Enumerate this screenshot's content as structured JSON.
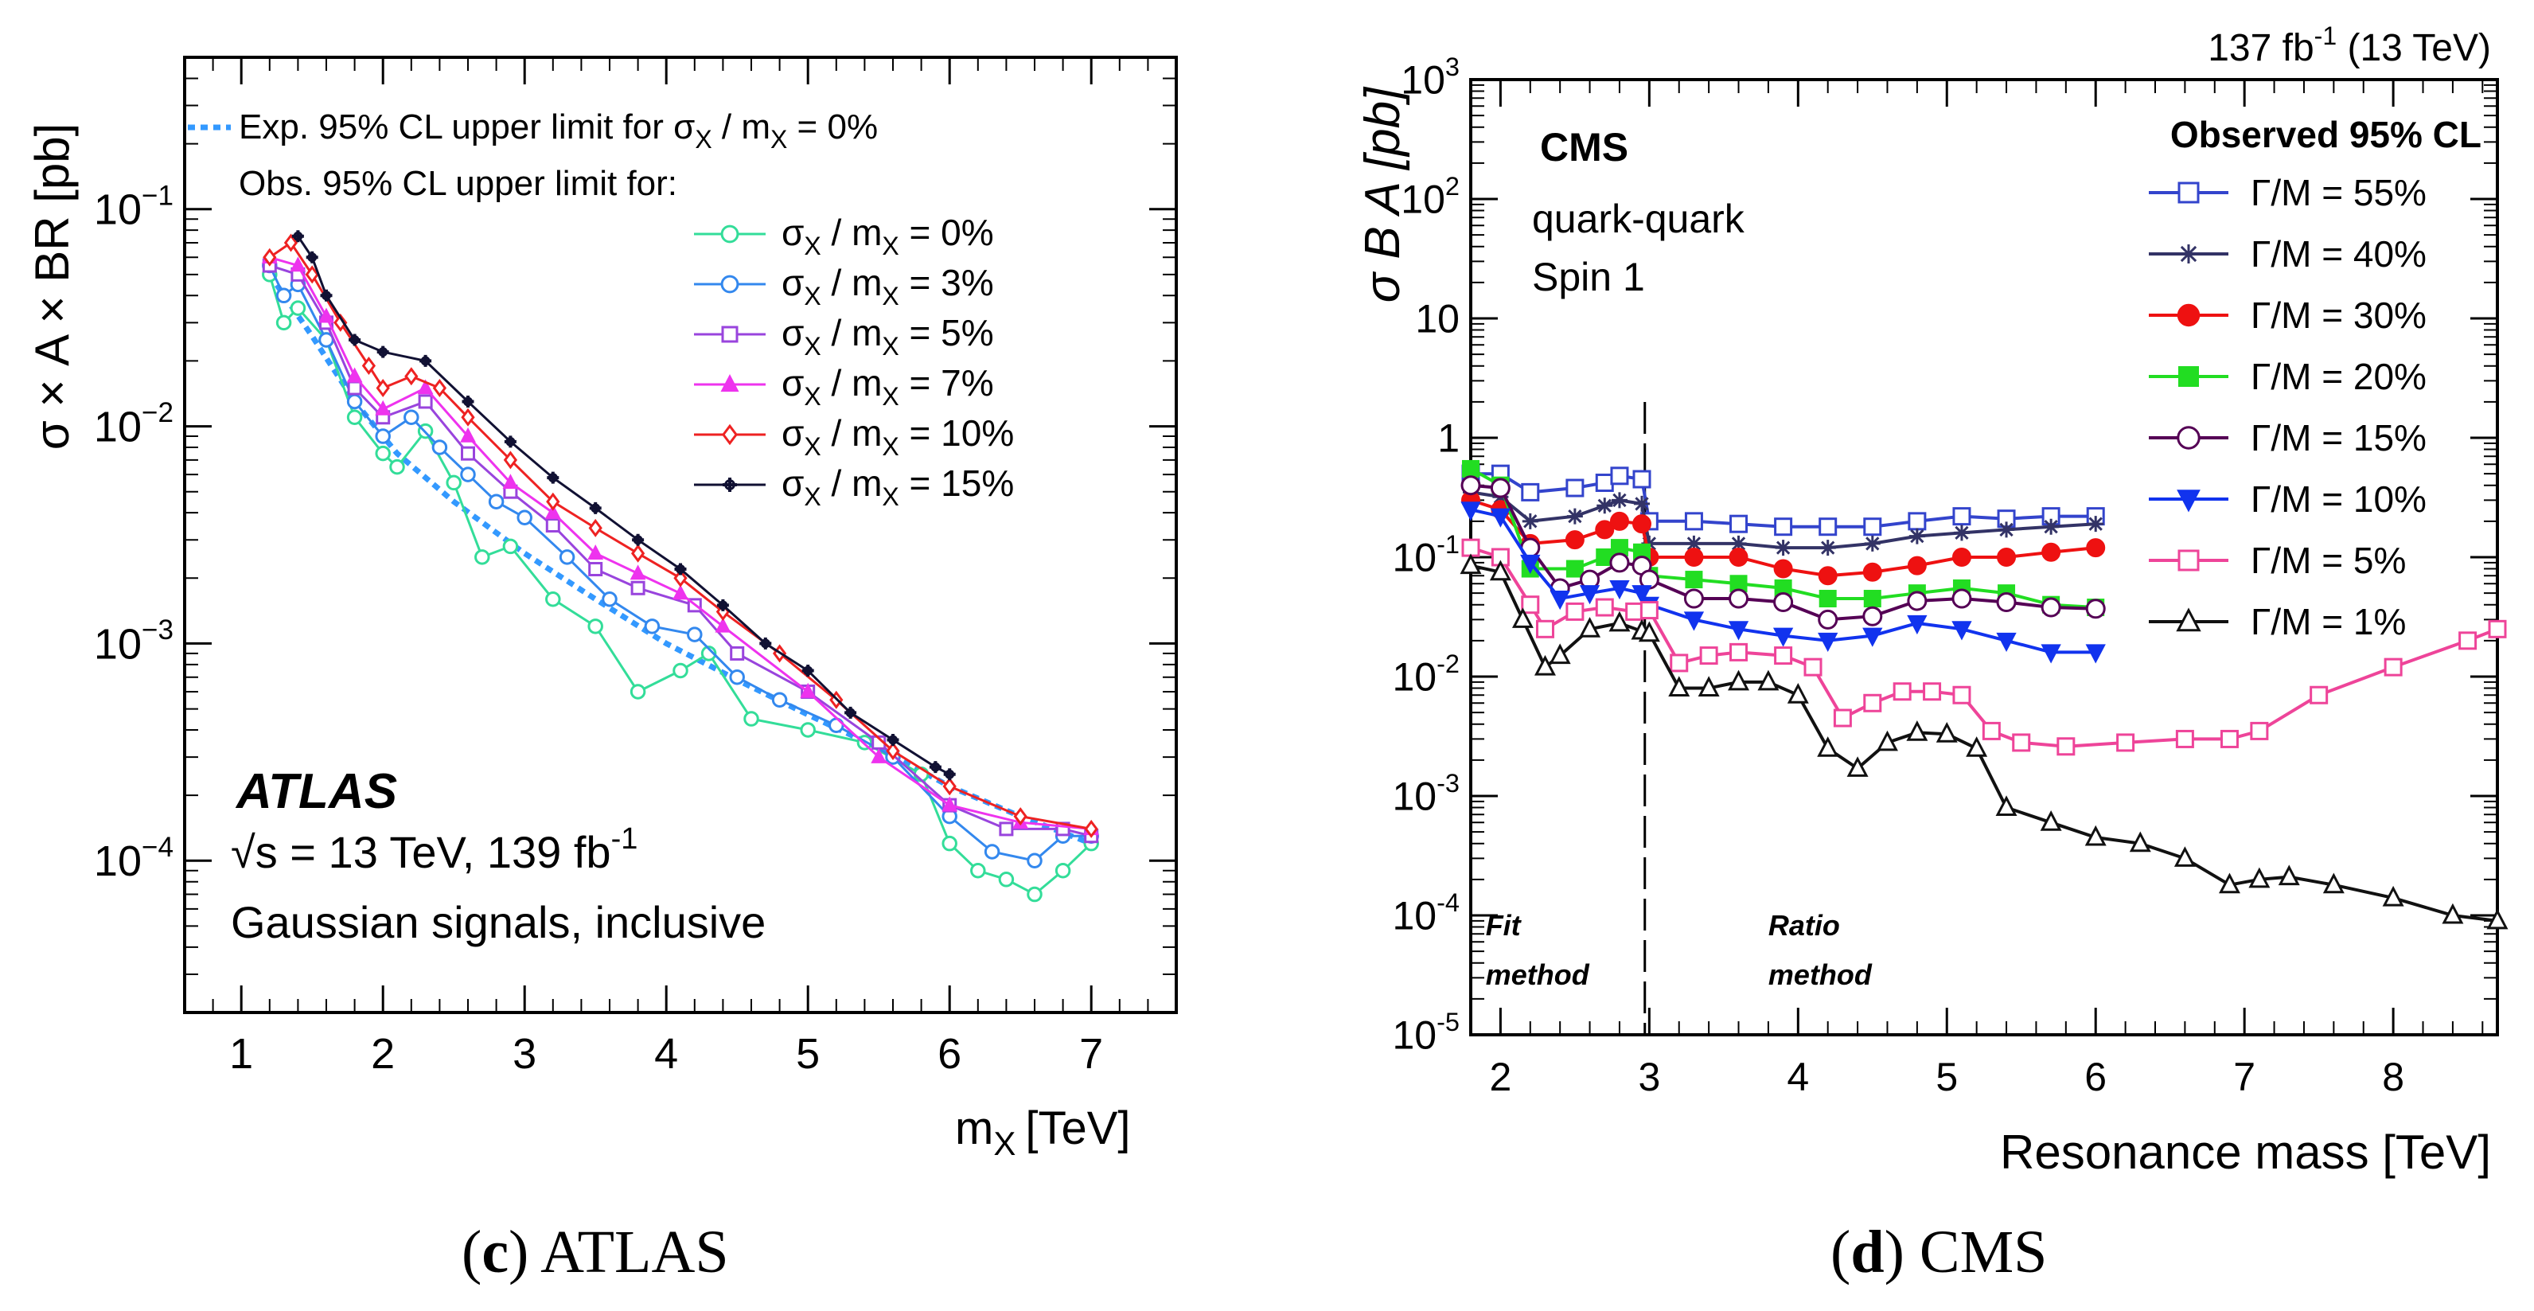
{
  "captions": [
    {
      "tag": "(c)",
      "letter": "c",
      "text": "ATLAS"
    },
    {
      "tag": "(d)",
      "letter": "d",
      "text": "CMS"
    }
  ],
  "chart_data": [
    {
      "type": "line",
      "experiment": "ATLAS",
      "logo": "ATLAS",
      "energy_text": "√s = 13 TeV, 139 fb",
      "energy_exp": "-1",
      "signal_text": "Gaussian signals, inclusive",
      "xlabel": "m",
      "xlabel_sub": "X",
      "xlabel_unit": "[TeV]",
      "ylabel": "σ × A × BR [pb]",
      "yscale": "log",
      "xlim": [
        0.6,
        7.6
      ],
      "ylim": [
        2e-05,
        0.5
      ],
      "xticks": [
        1,
        2,
        3,
        4,
        5,
        6,
        7
      ],
      "yticks": [
        {
          "value": 0.1,
          "base": "10",
          "exp": "−1"
        },
        {
          "value": 0.01,
          "base": "10",
          "exp": "−2"
        },
        {
          "value": 0.001,
          "base": "10",
          "exp": "−3"
        },
        {
          "value": 0.0001,
          "base": "10",
          "exp": "−4"
        }
      ],
      "legend_header": "Obs. 95% CL upper limit for:",
      "expected": {
        "name": "Exp. 95% CL upper limit for σ",
        "name_sub": "X",
        "name_tail": " / m",
        "name_sub2": "X",
        "name_end": " = 0%",
        "color": "#3399ff",
        "x": [
          1.2,
          1.5,
          1.8,
          2.1,
          2.5,
          3.0,
          3.5,
          4.0,
          4.5,
          5.0,
          5.5,
          6.0,
          6.5,
          7.0
        ],
        "y": [
          0.05,
          0.026,
          0.013,
          0.0075,
          0.0045,
          0.0026,
          0.0016,
          0.001,
          0.00068,
          0.00047,
          0.00033,
          0.00022,
          0.00016,
          0.00012
        ]
      },
      "series": [
        {
          "name": "σ",
          "sub": "X",
          "mid": " / m",
          "sub2": "X",
          "end": " = 0%",
          "color": "#33dd99",
          "marker": "circle",
          "x": [
            1.2,
            1.3,
            1.4,
            1.6,
            1.8,
            2.0,
            2.1,
            2.3,
            2.5,
            2.7,
            2.9,
            3.2,
            3.5,
            3.8,
            4.1,
            4.3,
            4.6,
            5.0,
            5.4,
            5.8,
            6.0,
            6.2,
            6.4,
            6.6,
            6.8,
            7.0
          ],
          "y": [
            0.05,
            0.03,
            0.035,
            0.025,
            0.011,
            0.0075,
            0.0065,
            0.0095,
            0.0055,
            0.0025,
            0.0028,
            0.0016,
            0.0012,
            0.0006,
            0.00075,
            0.0009,
            0.00045,
            0.0004,
            0.00035,
            0.00025,
            0.00012,
            9e-05,
            8.2e-05,
            7e-05,
            9e-05,
            0.00012
          ]
        },
        {
          "name": "σ",
          "sub": "X",
          "mid": " / m",
          "sub2": "X",
          "end": " = 3%",
          "color": "#3388ee",
          "marker": "circle",
          "x": [
            1.2,
            1.3,
            1.4,
            1.6,
            1.8,
            2.0,
            2.2,
            2.4,
            2.6,
            2.8,
            3.0,
            3.3,
            3.6,
            3.9,
            4.2,
            4.5,
            4.8,
            5.2,
            5.6,
            6.0,
            6.3,
            6.6,
            6.8,
            7.0
          ],
          "y": [
            0.055,
            0.04,
            0.045,
            0.025,
            0.013,
            0.009,
            0.011,
            0.008,
            0.006,
            0.0045,
            0.0038,
            0.0025,
            0.0016,
            0.0012,
            0.0011,
            0.0007,
            0.00055,
            0.00042,
            0.0003,
            0.00016,
            0.00011,
            0.0001,
            0.00013,
            0.00013
          ]
        },
        {
          "name": "σ",
          "sub": "X",
          "mid": " / m",
          "sub2": "X",
          "end": " = 5%",
          "color": "#9944dd",
          "marker": "square",
          "x": [
            1.2,
            1.4,
            1.6,
            1.8,
            2.0,
            2.3,
            2.6,
            2.9,
            3.2,
            3.5,
            3.8,
            4.2,
            4.5,
            5.0,
            5.5,
            6.0,
            6.4,
            6.8,
            7.0
          ],
          "y": [
            0.055,
            0.05,
            0.03,
            0.015,
            0.011,
            0.013,
            0.0075,
            0.005,
            0.0035,
            0.0022,
            0.0018,
            0.0015,
            0.0009,
            0.0006,
            0.00035,
            0.00018,
            0.00014,
            0.00014,
            0.00013
          ]
        },
        {
          "name": "σ",
          "sub": "X",
          "mid": " / m",
          "sub2": "X",
          "end": " = 7%",
          "color": "#ee33ee",
          "marker": "triangle",
          "x": [
            1.2,
            1.4,
            1.6,
            1.8,
            2.0,
            2.3,
            2.6,
            2.9,
            3.2,
            3.5,
            3.8,
            4.1,
            4.4,
            5.0,
            5.5,
            6.0,
            6.5,
            7.0
          ],
          "y": [
            0.06,
            0.055,
            0.032,
            0.017,
            0.012,
            0.015,
            0.009,
            0.0055,
            0.004,
            0.0026,
            0.0021,
            0.0017,
            0.0012,
            0.0006,
            0.0003,
            0.00018,
            0.00015,
            0.00014
          ]
        },
        {
          "name": "σ",
          "sub": "X",
          "mid": " / m",
          "sub2": "X",
          "end": " = 10%",
          "color": "#ee2222",
          "marker": "diamond",
          "x": [
            1.2,
            1.35,
            1.5,
            1.7,
            1.9,
            2.0,
            2.2,
            2.4,
            2.6,
            2.9,
            3.2,
            3.5,
            3.8,
            4.1,
            4.4,
            4.8,
            5.2,
            5.6,
            6.0,
            6.5,
            7.0
          ],
          "y": [
            0.06,
            0.07,
            0.05,
            0.03,
            0.019,
            0.015,
            0.017,
            0.015,
            0.011,
            0.007,
            0.0045,
            0.0034,
            0.0026,
            0.002,
            0.0014,
            0.0009,
            0.00055,
            0.00032,
            0.00022,
            0.00016,
            0.00014
          ]
        },
        {
          "name": "σ",
          "sub": "X",
          "mid": " / m",
          "sub2": "X",
          "end": " = 15%",
          "color": "#111133",
          "marker": "cross",
          "x": [
            1.4,
            1.5,
            1.6,
            1.8,
            2.0,
            2.3,
            2.6,
            2.9,
            3.2,
            3.5,
            3.8,
            4.1,
            4.4,
            4.7,
            5.0,
            5.3,
            5.6,
            5.9,
            6.0
          ],
          "y": [
            0.075,
            0.06,
            0.04,
            0.025,
            0.022,
            0.02,
            0.013,
            0.0085,
            0.0058,
            0.0042,
            0.003,
            0.0022,
            0.0015,
            0.001,
            0.00075,
            0.00048,
            0.00036,
            0.00027,
            0.00025
          ]
        }
      ]
    },
    {
      "type": "line",
      "experiment": "CMS",
      "lumi_text": "137 fb",
      "lumi_exp": "-1",
      "lumi_tail": " (13 TeV)",
      "logo": "CMS",
      "subtitle_1": "quark-quark",
      "subtitle_2": "Spin 1",
      "legend_title": "Observed 95% CL",
      "xlabel": "Resonance mass [TeV]",
      "ylabel": "σ B A [pb]",
      "yscale": "log",
      "xlim": [
        1.8,
        8.7
      ],
      "ylim": [
        1e-05,
        1000
      ],
      "xticks": [
        2,
        3,
        4,
        5,
        6,
        7,
        8
      ],
      "yticks": [
        {
          "value": 1000,
          "base": "10",
          "exp": "3"
        },
        {
          "value": 100,
          "base": "10",
          "exp": "2"
        },
        {
          "value": 10,
          "base": "10",
          "exp": ""
        },
        {
          "value": 1,
          "base": "1",
          "exp": ""
        },
        {
          "value": 0.1,
          "base": "10",
          "exp": "-1"
        },
        {
          "value": 0.01,
          "base": "10",
          "exp": "-2"
        },
        {
          "value": 0.001,
          "base": "10",
          "exp": "-3"
        },
        {
          "value": 0.0001,
          "base": "10",
          "exp": "-4"
        },
        {
          "value": 1e-05,
          "base": "10",
          "exp": "-5"
        }
      ],
      "divider_x": 2.97,
      "annotations": [
        {
          "lines": [
            "Fit",
            "method"
          ],
          "x": 1.9
        },
        {
          "lines": [
            "Ratio",
            "method"
          ],
          "x": 3.8
        }
      ],
      "series": [
        {
          "name": "Γ/M = 55%",
          "color": "#3344cc",
          "marker": "open-square",
          "x": [
            1.8,
            2.0,
            2.2,
            2.5,
            2.7,
            2.8,
            2.95,
            3.0,
            3.3,
            3.6,
            3.9,
            4.2,
            4.5,
            4.8,
            5.1,
            5.4,
            5.7,
            6.0
          ],
          "y": [
            0.5,
            0.5,
            0.35,
            0.38,
            0.42,
            0.48,
            0.45,
            0.2,
            0.2,
            0.19,
            0.18,
            0.18,
            0.18,
            0.2,
            0.22,
            0.21,
            0.22,
            0.22
          ]
        },
        {
          "name": "Γ/M = 40%",
          "color": "#333366",
          "marker": "star",
          "x": [
            1.8,
            2.0,
            2.2,
            2.5,
            2.7,
            2.8,
            2.95,
            3.0,
            3.3,
            3.6,
            3.9,
            4.2,
            4.5,
            4.8,
            5.1,
            5.4,
            5.7,
            6.0
          ],
          "y": [
            0.35,
            0.32,
            0.2,
            0.22,
            0.27,
            0.3,
            0.28,
            0.13,
            0.13,
            0.13,
            0.12,
            0.12,
            0.13,
            0.15,
            0.16,
            0.17,
            0.18,
            0.19
          ]
        },
        {
          "name": "Γ/M = 30%",
          "color": "#ee1111",
          "marker": "filled-circle",
          "x": [
            1.8,
            2.0,
            2.2,
            2.5,
            2.7,
            2.8,
            2.95,
            3.0,
            3.3,
            3.6,
            3.9,
            4.2,
            4.5,
            4.8,
            5.1,
            5.4,
            5.7,
            6.0
          ],
          "y": [
            0.3,
            0.25,
            0.13,
            0.14,
            0.17,
            0.2,
            0.19,
            0.1,
            0.1,
            0.1,
            0.08,
            0.07,
            0.075,
            0.085,
            0.1,
            0.1,
            0.11,
            0.12
          ]
        },
        {
          "name": "Γ/M = 20%",
          "color": "#22dd22",
          "marker": "filled-square",
          "x": [
            1.8,
            2.0,
            2.2,
            2.5,
            2.7,
            2.8,
            2.95,
            3.0,
            3.3,
            3.6,
            3.9,
            4.2,
            4.5,
            4.8,
            5.1,
            5.4,
            5.7,
            6.0
          ],
          "y": [
            0.55,
            0.4,
            0.08,
            0.08,
            0.1,
            0.12,
            0.11,
            0.07,
            0.065,
            0.06,
            0.055,
            0.045,
            0.045,
            0.05,
            0.055,
            0.05,
            0.04,
            0.038
          ]
        },
        {
          "name": "Γ/M = 15%",
          "color": "#550055",
          "marker": "open-circle",
          "x": [
            1.8,
            2.0,
            2.2,
            2.4,
            2.6,
            2.8,
            2.95,
            3.0,
            3.3,
            3.6,
            3.9,
            4.2,
            4.5,
            4.8,
            5.1,
            5.4,
            5.7,
            6.0
          ],
          "y": [
            0.4,
            0.38,
            0.12,
            0.055,
            0.065,
            0.09,
            0.085,
            0.065,
            0.045,
            0.045,
            0.042,
            0.03,
            0.032,
            0.043,
            0.045,
            0.042,
            0.038,
            0.037
          ]
        },
        {
          "name": "Γ/M = 10%",
          "color": "#1133ee",
          "marker": "filled-triangle-down",
          "x": [
            1.8,
            2.0,
            2.2,
            2.4,
            2.6,
            2.8,
            2.95,
            3.0,
            3.3,
            3.6,
            3.9,
            4.2,
            4.5,
            4.8,
            5.1,
            5.4,
            5.7,
            6.0
          ],
          "y": [
            0.25,
            0.22,
            0.09,
            0.045,
            0.05,
            0.055,
            0.05,
            0.04,
            0.03,
            0.025,
            0.022,
            0.02,
            0.022,
            0.028,
            0.025,
            0.02,
            0.016,
            0.016
          ]
        },
        {
          "name": "Γ/M = 5%",
          "color": "#ee4499",
          "marker": "open-square",
          "x": [
            1.8,
            2.0,
            2.2,
            2.3,
            2.5,
            2.7,
            2.9,
            3.0,
            3.2,
            3.4,
            3.6,
            3.9,
            4.1,
            4.3,
            4.5,
            4.7,
            4.9,
            5.1,
            5.3,
            5.5,
            5.8,
            6.2,
            6.6,
            6.9,
            7.1,
            7.5,
            8.0,
            8.5,
            8.7
          ],
          "y": [
            0.12,
            0.1,
            0.04,
            0.025,
            0.035,
            0.038,
            0.035,
            0.036,
            0.013,
            0.015,
            0.016,
            0.015,
            0.012,
            0.0045,
            0.006,
            0.0075,
            0.0075,
            0.007,
            0.0035,
            0.0028,
            0.0026,
            0.0028,
            0.003,
            0.003,
            0.0035,
            0.007,
            0.012,
            0.02,
            0.025
          ]
        },
        {
          "name": "Γ/M = 1%",
          "color": "#111111",
          "marker": "open-triangle",
          "x": [
            1.8,
            2.0,
            2.15,
            2.3,
            2.4,
            2.6,
            2.8,
            2.95,
            3.0,
            3.2,
            3.4,
            3.6,
            3.8,
            4.0,
            4.2,
            4.4,
            4.6,
            4.8,
            5.0,
            5.2,
            5.4,
            5.7,
            6.0,
            6.3,
            6.6,
            6.9,
            7.1,
            7.3,
            7.6,
            8.0,
            8.4,
            8.7
          ],
          "y": [
            0.085,
            0.075,
            0.03,
            0.012,
            0.015,
            0.025,
            0.028,
            0.024,
            0.023,
            0.008,
            0.008,
            0.009,
            0.009,
            0.007,
            0.0025,
            0.0017,
            0.0028,
            0.0034,
            0.0033,
            0.0025,
            0.0008,
            0.0006,
            0.00045,
            0.0004,
            0.0003,
            0.00018,
            0.0002,
            0.00021,
            0.00018,
            0.00014,
            0.0001,
            9e-05
          ]
        }
      ]
    }
  ]
}
